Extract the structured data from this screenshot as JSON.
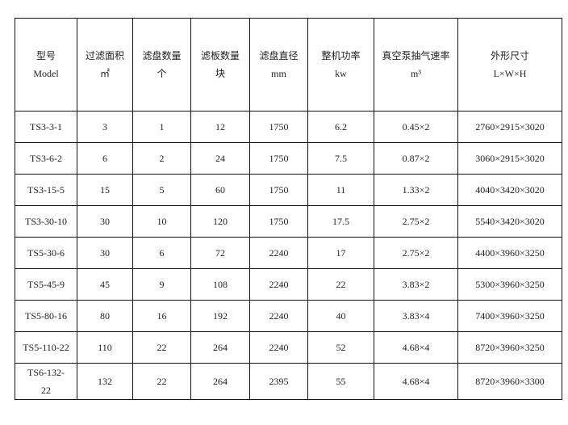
{
  "headers": [
    {
      "line1": "型号",
      "line2": "Model"
    },
    {
      "line1": "过滤面积",
      "line2": "㎡"
    },
    {
      "line1": "滤盘数量",
      "line2": "个"
    },
    {
      "line1": "滤板数量",
      "line2": "块"
    },
    {
      "line1": "滤盘直径",
      "line2": "mm"
    },
    {
      "line1": "整机功率",
      "line2": "kw"
    },
    {
      "line1": "真空泵抽气速率",
      "line2": "m³"
    },
    {
      "line1": "外形尺寸",
      "line2": "L×W×H"
    }
  ],
  "rows": [
    [
      "TS3-3-1",
      "3",
      "1",
      "12",
      "1750",
      "6.2",
      "0.45×2",
      "2760×2915×3020"
    ],
    [
      "TS3-6-2",
      "6",
      "2",
      "24",
      "1750",
      "7.5",
      "0.87×2",
      "3060×2915×3020"
    ],
    [
      "TS3-15-5",
      "15",
      "5",
      "60",
      "1750",
      "11",
      "1.33×2",
      "4040×3420×3020"
    ],
    [
      "TS3-30-10",
      "30",
      "10",
      "120",
      "1750",
      "17.5",
      "2.75×2",
      "5540×3420×3020"
    ],
    [
      "TS5-30-6",
      "30",
      "6",
      "72",
      "2240",
      "17",
      "2.75×2",
      "4400×3960×3250"
    ],
    [
      "TS5-45-9",
      "45",
      "9",
      "108",
      "2240",
      "22",
      "3.83×2",
      "5300×3960×3250"
    ],
    [
      "TS5-80-16",
      "80",
      "16",
      "192",
      "2240",
      "40",
      "3.83×4",
      "7400×3960×3250"
    ],
    [
      "TS5-110-22",
      "110",
      "22",
      "264",
      "2240",
      "52",
      "4.68×4",
      "8720×3960×3250"
    ],
    [
      "TS6-132-22",
      "132",
      "22",
      "264",
      "2395",
      "55",
      "4.68×4",
      "8720×3960×3300"
    ]
  ]
}
